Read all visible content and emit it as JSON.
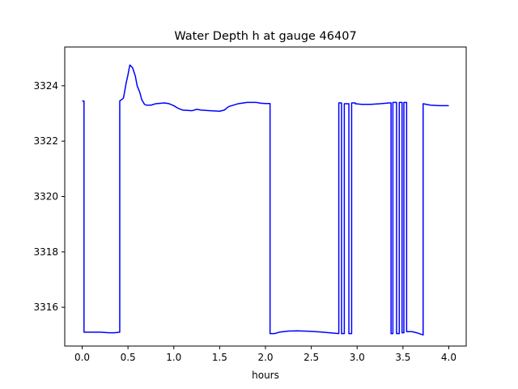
{
  "chart_data": {
    "type": "line",
    "title": "Water Depth h at gauge 46407",
    "xlabel": "hours",
    "ylabel": "",
    "xlim": [
      -0.19,
      4.19
    ],
    "ylim": [
      3314.6,
      3325.4
    ],
    "xticks": [
      {
        "value": 0.0,
        "label": "0.0"
      },
      {
        "value": 0.5,
        "label": "0.5"
      },
      {
        "value": 1.0,
        "label": "1.0"
      },
      {
        "value": 1.5,
        "label": "1.5"
      },
      {
        "value": 2.0,
        "label": "2.0"
      },
      {
        "value": 2.5,
        "label": "2.5"
      },
      {
        "value": 3.0,
        "label": "3.0"
      },
      {
        "value": 3.5,
        "label": "3.5"
      },
      {
        "value": 4.0,
        "label": "4.0"
      }
    ],
    "yticks": [
      {
        "value": 3316,
        "label": "3316"
      },
      {
        "value": 3318,
        "label": "3318"
      },
      {
        "value": 3320,
        "label": "3320"
      },
      {
        "value": 3322,
        "label": "3322"
      },
      {
        "value": 3324,
        "label": "3324"
      }
    ],
    "grid": false,
    "series": [
      {
        "color": "#0000ff",
        "x": [
          0.0,
          0.02,
          0.02,
          0.1,
          0.2,
          0.3,
          0.35,
          0.41,
          0.41,
          0.45,
          0.48,
          0.5,
          0.52,
          0.55,
          0.58,
          0.6,
          0.63,
          0.65,
          0.68,
          0.7,
          0.75,
          0.8,
          0.9,
          0.95,
          1.0,
          1.05,
          1.1,
          1.2,
          1.25,
          1.3,
          1.4,
          1.5,
          1.55,
          1.6,
          1.7,
          1.8,
          1.9,
          1.95,
          2.0,
          2.05,
          2.05,
          2.1,
          2.15,
          2.25,
          2.35,
          2.5,
          2.6,
          2.7,
          2.8,
          2.8,
          2.83,
          2.83,
          2.86,
          2.86,
          2.91,
          2.91,
          2.94,
          2.94,
          2.98,
          2.98,
          3.05,
          3.15,
          3.25,
          3.35,
          3.37,
          3.37,
          3.39,
          3.39,
          3.43,
          3.43,
          3.46,
          3.46,
          3.49,
          3.49,
          3.51,
          3.51,
          3.54,
          3.54,
          3.6,
          3.65,
          3.72,
          3.72,
          3.8,
          3.9,
          4.0
        ],
        "y": [
          3323.45,
          3323.45,
          3315.1,
          3315.1,
          3315.1,
          3315.08,
          3315.08,
          3315.1,
          3323.45,
          3323.55,
          3324.1,
          3324.4,
          3324.75,
          3324.65,
          3324.35,
          3324.0,
          3323.75,
          3323.5,
          3323.33,
          3323.3,
          3323.3,
          3323.35,
          3323.38,
          3323.35,
          3323.28,
          3323.18,
          3323.12,
          3323.1,
          3323.15,
          3323.12,
          3323.1,
          3323.08,
          3323.12,
          3323.25,
          3323.35,
          3323.4,
          3323.4,
          3323.37,
          3323.36,
          3323.36,
          3315.05,
          3315.05,
          3315.1,
          3315.14,
          3315.15,
          3315.13,
          3315.11,
          3315.08,
          3315.05,
          3323.38,
          3323.38,
          3315.05,
          3315.05,
          3323.35,
          3323.35,
          3315.05,
          3315.05,
          3323.38,
          3323.38,
          3323.35,
          3323.33,
          3323.33,
          3323.35,
          3323.38,
          3323.38,
          3315.05,
          3315.05,
          3323.4,
          3323.4,
          3315.05,
          3315.05,
          3323.4,
          3323.4,
          3315.08,
          3315.08,
          3323.4,
          3323.4,
          3315.12,
          3315.12,
          3315.08,
          3315.0,
          3323.35,
          3323.3,
          3323.28,
          3323.28
        ]
      }
    ]
  }
}
